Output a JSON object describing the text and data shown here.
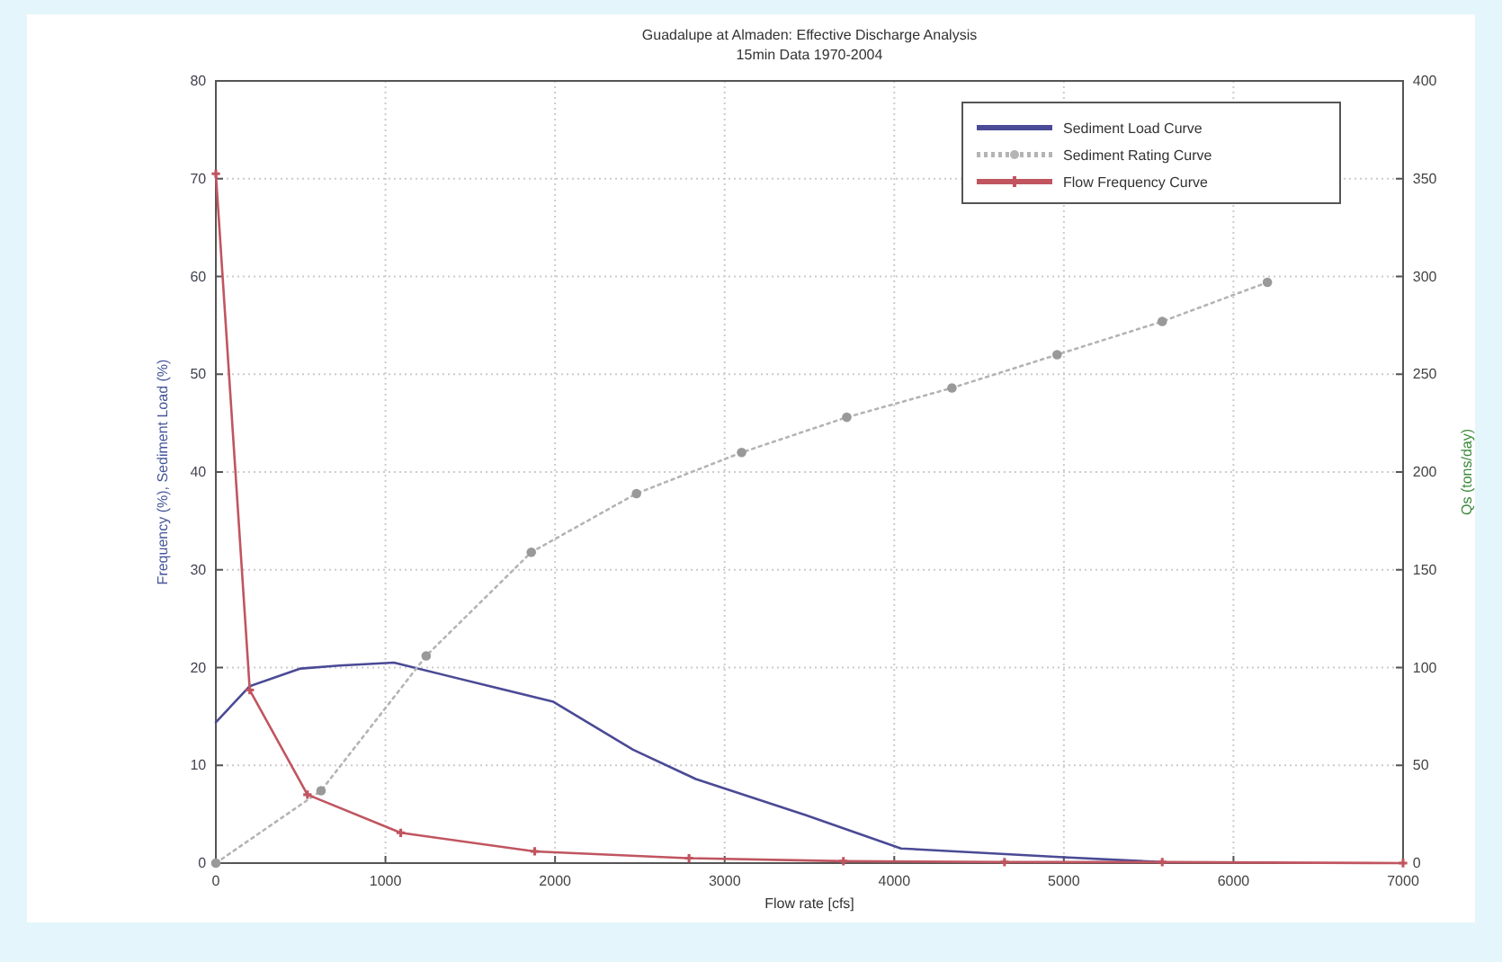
{
  "chart_data": {
    "type": "line",
    "title": "Guadalupe at Almaden: Effective Discharge Analysis",
    "subtitle": "15min Data 1970-2004",
    "xlabel": "Flow rate [cfs]",
    "ylabel": "Frequency (%), Sediment Load (%)",
    "y2label": "Qs (tons/day)",
    "xlim": [
      0,
      7000
    ],
    "xticks": [
      0,
      1000,
      2000,
      3000,
      4000,
      5000,
      6000,
      7000
    ],
    "ylim": [
      0,
      80
    ],
    "yticks": [
      0,
      10,
      20,
      30,
      40,
      50,
      60,
      70,
      80
    ],
    "y2lim": [
      0,
      400
    ],
    "y2ticks": [
      0,
      50,
      100,
      150,
      200,
      250,
      300,
      350,
      400
    ],
    "grid": true,
    "legend": "top right",
    "series": [
      {
        "name": "Sediment Load Curve",
        "color": "#4a4a96",
        "marker": "none",
        "line_style": "solid",
        "x": [
          0,
          200,
          500,
          730,
          1050,
          1990,
          2460,
          2830,
          3480,
          4040,
          5000,
          5580
        ],
        "values": [
          14.4,
          18.1,
          19.9,
          20.2,
          20.5,
          16.5,
          11.6,
          8.6,
          4.9,
          1.5,
          0.6,
          0.1
        ]
      },
      {
        "name": "Sediment Rating Curve",
        "color": "#b4b4b4",
        "marker": "circle",
        "line_style": "dotted",
        "axis": "y2",
        "x": [
          0,
          620,
          1240,
          1860,
          2480,
          3100,
          3720,
          4340,
          4960,
          5580,
          6200
        ],
        "values": [
          0,
          37,
          106,
          159,
          189,
          210,
          228,
          243,
          260,
          277,
          297
        ]
      },
      {
        "name": "Flow Frequency Curve",
        "color": "#c05560",
        "marker": "cross",
        "line_style": "solid",
        "x": [
          0,
          200,
          540,
          1090,
          1880,
          2790,
          3700,
          4650,
          5580,
          7000
        ],
        "values": [
          70.5,
          17.7,
          7.0,
          3.1,
          1.2,
          0.5,
          0.2,
          0.1,
          0.1,
          0
        ]
      }
    ]
  }
}
